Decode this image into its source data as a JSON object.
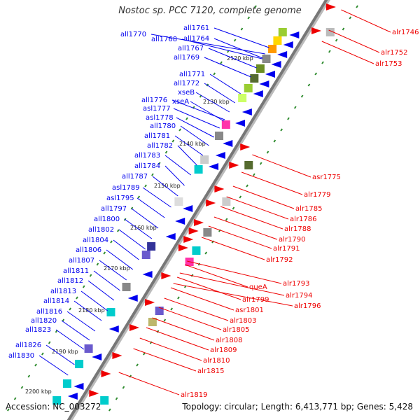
{
  "title": "Nostoc sp. PCC 7120, complete genome",
  "accession": "Accession: NC_003272",
  "topology": "Topology: circular; Length: 6,413,771 bp; Genes: 5,428",
  "colors": {
    "minus": "#0000ee",
    "plus": "#ee0000",
    "backbone": "#888888",
    "dot": "#2e8b2e"
  },
  "kbp_ticks": [
    "2120 kbp",
    "2130 kbp",
    "2140 kbp",
    "2150 kbp",
    "2160 kbp",
    "2170 kbp",
    "2180 kbp",
    "2190 kbp",
    "2200 kbp"
  ],
  "left_labels": [
    "all1761",
    "all1764",
    "all1767",
    "all1769",
    "all1770",
    "all1768",
    "all1771",
    "all1772",
    "xseB",
    "xseA",
    "all1776",
    "asl1777",
    "asl1778",
    "all1780",
    "all1781",
    "all1782",
    "all1783",
    "all1784",
    "all1787",
    "asl1789",
    "asl1795",
    "all1797",
    "all1800",
    "all1802",
    "all1804",
    "all1806",
    "all1807",
    "all1811",
    "all1812",
    "all1813",
    "all1814",
    "all1816",
    "all1820",
    "all1823",
    "all1826",
    "all1830"
  ],
  "right_labels": [
    "alr1746",
    "alr1752",
    "alr1753",
    "asr1775",
    "alr1779",
    "alr1785",
    "alr1786",
    "alr1788",
    "alr1790",
    "alr1791",
    "alr1792",
    "alr1793",
    "queA",
    "alr1794",
    "alr1799",
    "alr1796",
    "asr1801",
    "alr1803",
    "alr1805",
    "alr1808",
    "alr1809",
    "alr1810",
    "alr1815",
    "alr1819"
  ]
}
